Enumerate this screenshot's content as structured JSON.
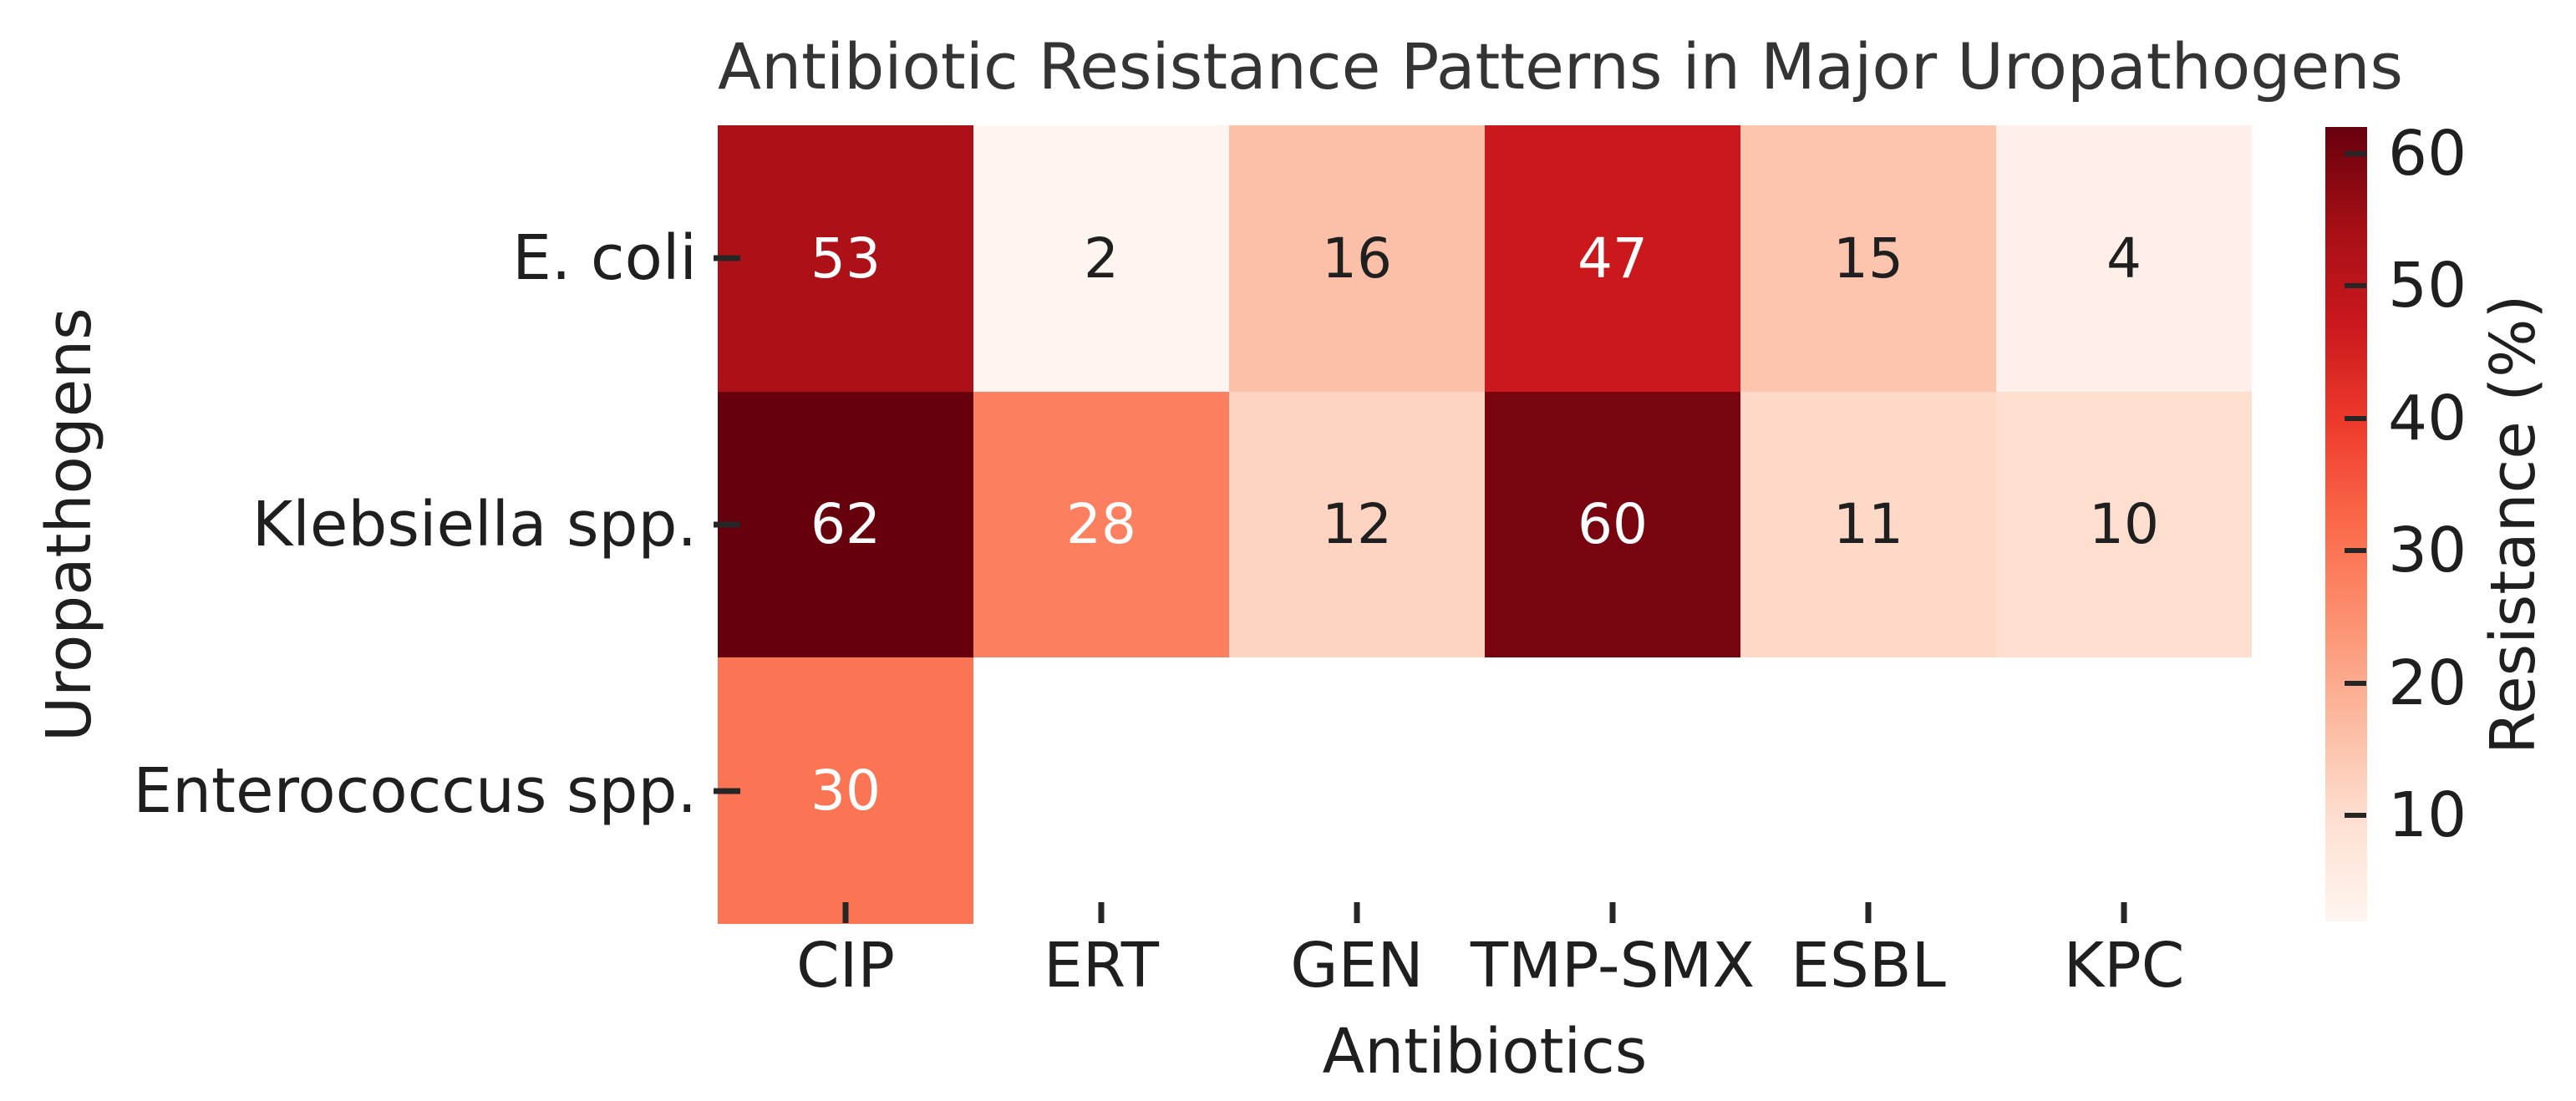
{
  "chart_data": {
    "type": "heatmap",
    "title": "Antibiotic Resistance Patterns in Major Uropathogens",
    "xlabel": "Antibiotics",
    "ylabel": "Uropathogens",
    "columns": [
      "CIP",
      "ERT",
      "GEN",
      "TMP-SMX",
      "ESBL",
      "KPC"
    ],
    "rows": [
      "E. coli",
      "Klebsiella spp.",
      "Enterococcus spp."
    ],
    "values": [
      [
        53,
        2,
        16,
        47,
        15,
        4
      ],
      [
        62,
        28,
        12,
        60,
        11,
        10
      ],
      [
        30,
        null,
        null,
        null,
        null,
        null
      ]
    ],
    "cell_colors": [
      [
        "#ad1117",
        "#fff5f0",
        "#fcc0a8",
        "#cb181d",
        "#fdc5ae",
        "#ffefe8"
      ],
      [
        "#67000d",
        "#fc7f5f",
        "#fdd4c2",
        "#78040f",
        "#fed9c8",
        "#fedecf"
      ],
      [
        "#fb7555",
        null,
        null,
        null,
        null,
        null
      ]
    ],
    "text_colors": [
      [
        "#ffffff",
        "#1f1f1f",
        "#1f1f1f",
        "#ffffff",
        "#1f1f1f",
        "#1f1f1f"
      ],
      [
        "#ffffff",
        "#ffffff",
        "#1f1f1f",
        "#ffffff",
        "#1f1f1f",
        "#1f1f1f"
      ],
      [
        "#ffffff",
        null,
        null,
        null,
        null,
        null
      ]
    ],
    "colormap": "Reds",
    "grid": false,
    "colorbar": {
      "label": "Resistance (%)",
      "ticks": [
        10,
        20,
        30,
        40,
        50,
        60
      ],
      "vmin": 2,
      "vmax": 62,
      "gradient_stops": [
        "#fff5f0",
        "#fee0d2",
        "#fcbba1",
        "#fc9272",
        "#fb6a4a",
        "#ef3b2c",
        "#cb181d",
        "#a50f15",
        "#67000d"
      ]
    }
  },
  "text_color_dark": "#1f1f1f",
  "text_color_light": "#ffffff",
  "background_color": "#ffffff"
}
